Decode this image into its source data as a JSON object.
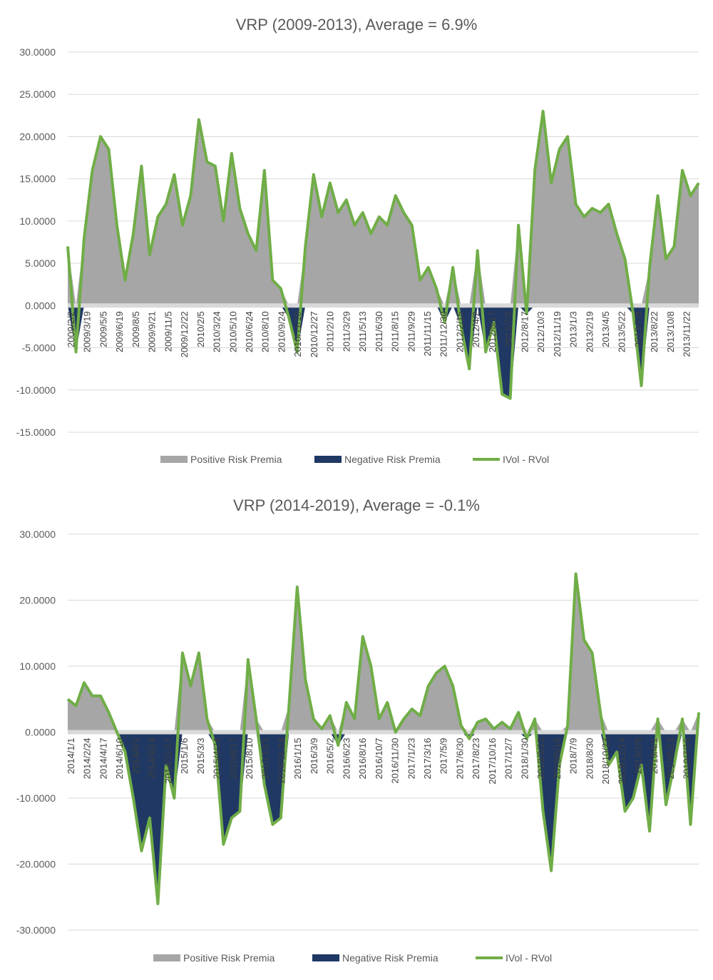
{
  "colors": {
    "positive": "#a6a6a6",
    "negative": "#1f3864",
    "line": "#70ad47",
    "grid": "#d9d9d9",
    "text": "#595959"
  },
  "chart_data": [
    {
      "type": "area",
      "title": "VRP (2009-2013), Average = 6.9%",
      "ylim": [
        -15,
        30
      ],
      "yticks": [
        "30.0000",
        "25.0000",
        "20.0000",
        "15.0000",
        "10.0000",
        "5.0000",
        "0.0000",
        "-5.0000",
        "-10.0000",
        "-15.0000"
      ],
      "ytick_values": [
        30,
        25,
        20,
        15,
        10,
        5,
        0,
        -5,
        -10,
        -15
      ],
      "x_tick_labels": [
        "2009/2/2",
        "2009/3/19",
        "2009/5/5",
        "2009/6/19",
        "2009/8/5",
        "2009/9/21",
        "2009/11/5",
        "2009/12/22",
        "2010/2/5",
        "2010/3/24",
        "2010/5/10",
        "2010/6/24",
        "2010/8/10",
        "2010/9/24",
        "2010/11/10",
        "2010/12/27",
        "2011/2/10",
        "2011/3/29",
        "2011/5/13",
        "2011/6/30",
        "2011/8/15",
        "2011/9/29",
        "2011/11/15",
        "2011/12/30",
        "2012/2/15",
        "2012/4/2",
        "2012/5/17",
        "2012/7/3",
        "2012/8/17",
        "2012/10/3",
        "2012/11/19",
        "2013/1/3",
        "2013/2/19",
        "2013/4/5",
        "2013/5/22",
        "2013/7/8",
        "2013/8/22",
        "2013/10/8",
        "2013/11/22"
      ],
      "legend": [
        "Positive Risk Premia",
        "Negative Risk Premia",
        "IVol - RVol"
      ],
      "legend_position": "bottom",
      "grid": true,
      "series": [
        {
          "name": "IVol - RVol",
          "x": [
            0,
            0.5,
            1,
            1.5,
            2,
            2.5,
            3,
            3.5,
            4,
            4.5,
            5,
            5.5,
            6,
            6.5,
            7,
            7.5,
            8,
            8.5,
            9,
            9.5,
            10,
            10.5,
            11,
            11.5,
            12,
            12.5,
            13,
            13.5,
            14,
            14.5,
            15,
            15.5,
            16,
            16.5,
            17,
            17.5,
            18,
            18.5,
            19,
            19.5,
            20,
            20.5,
            21,
            21.5,
            22,
            22.5,
            23,
            23.5,
            24,
            24.5,
            25,
            25.5,
            26,
            26.5,
            27,
            27.5,
            28,
            28.5,
            29,
            29.5,
            30,
            30.5,
            31,
            31.5,
            32,
            32.5,
            33,
            33.5,
            34,
            34.5,
            35,
            35.5,
            36,
            36.5,
            37,
            37.5,
            38,
            38.5
          ],
          "values": [
            7.0,
            -5.5,
            8.0,
            16.0,
            20.0,
            18.5,
            9.5,
            3.0,
            8.5,
            16.5,
            6.0,
            10.5,
            12.0,
            15.5,
            9.5,
            13.0,
            22.0,
            17.0,
            16.5,
            10.0,
            18.0,
            11.5,
            8.5,
            6.5,
            16.0,
            3.0,
            2.0,
            -1.5,
            -5.5,
            7.0,
            15.5,
            10.5,
            14.5,
            11.0,
            12.5,
            9.5,
            11.0,
            8.5,
            10.5,
            9.5,
            13.0,
            11.0,
            9.5,
            3.0,
            4.5,
            2.0,
            -2.0,
            4.5,
            -2.5,
            -7.5,
            6.5,
            -5.5,
            -2.0,
            -10.5,
            -11.0,
            9.5,
            -1.0,
            16.0,
            23.0,
            14.5,
            18.5,
            20.0,
            12.0,
            10.5,
            11.5,
            11.0,
            12.0,
            8.5,
            5.5,
            -1.0,
            -9.5,
            4.5,
            13.0,
            5.5,
            7.0,
            16.0,
            13.0,
            14.5
          ]
        }
      ]
    },
    {
      "type": "area",
      "title": "VRP (2014-2019), Average = -0.1%",
      "ylim": [
        -30,
        30
      ],
      "yticks": [
        "30.0000",
        "20.0000",
        "10.0000",
        "0.0000",
        "-10.0000",
        "-20.0000",
        "-30.0000"
      ],
      "ytick_values": [
        30,
        20,
        10,
        0,
        -10,
        -20,
        -30
      ],
      "x_tick_labels": [
        "2014/1/1",
        "2014/2/24",
        "2014/4/17",
        "2014/6/10",
        "2014/8/1",
        "2014/9/24",
        "2014/11/17",
        "2015/1/6",
        "2015/3/3",
        "2015/4/24",
        "2015/6/17",
        "2015/8/10",
        "2015/10/1",
        "2015/11/24",
        "2016/1/15",
        "2016/3/9",
        "2016/5/2",
        "2016/6/23",
        "2016/8/16",
        "2016/10/7",
        "2016/11/30",
        "2017/1/23",
        "2017/3/16",
        "2017/5/9",
        "2017/6/30",
        "2017/8/23",
        "2017/10/16",
        "2017/12/7",
        "2018/1/30",
        "2018/3/23",
        "2018/5/16",
        "2018/7/9",
        "2018/8/30",
        "2018/10/23",
        "2018/12/14",
        "2019/2/6",
        "2019/4/1",
        "2019/5/23",
        "2019/7/16"
      ],
      "legend": [
        "Positive Risk Premia",
        "Negative Risk Premia",
        "IVol - RVol"
      ],
      "legend_position": "bottom",
      "grid": true,
      "series": [
        {
          "name": "IVol - RVol",
          "x": [
            0,
            0.5,
            1,
            1.5,
            2,
            2.5,
            3,
            3.5,
            4,
            4.5,
            5,
            5.5,
            6,
            6.5,
            7,
            7.5,
            8,
            8.5,
            9,
            9.5,
            10,
            10.5,
            11,
            11.5,
            12,
            12.5,
            13,
            13.5,
            14,
            14.5,
            15,
            15.5,
            16,
            16.5,
            17,
            17.5,
            18,
            18.5,
            19,
            19.5,
            20,
            20.5,
            21,
            21.5,
            22,
            22.5,
            23,
            23.5,
            24,
            24.5,
            25,
            25.5,
            26,
            26.5,
            27,
            27.5,
            28,
            28.5,
            29,
            29.5,
            30,
            30.5,
            31,
            31.5,
            32,
            32.5,
            33,
            33.5,
            34,
            34.5,
            35,
            35.5,
            36,
            36.5,
            37,
            37.5,
            38,
            38.5
          ],
          "values": [
            5.0,
            4.0,
            7.5,
            5.5,
            5.5,
            3.0,
            0.0,
            -3.0,
            -10.0,
            -18.0,
            -13.0,
            -26.0,
            -5.0,
            -10.0,
            12.0,
            7.0,
            12.0,
            2.0,
            -2.0,
            -17.0,
            -13.0,
            -12.0,
            11.0,
            2.0,
            -8.0,
            -14.0,
            -13.0,
            4.0,
            22.0,
            8.0,
            2.0,
            0.5,
            2.5,
            -2.0,
            4.5,
            2.0,
            14.5,
            10.0,
            2.0,
            4.5,
            0.0,
            2.0,
            3.5,
            2.5,
            7.0,
            9.0,
            10.0,
            7.0,
            1.0,
            -1.0,
            1.5,
            2.0,
            0.5,
            1.5,
            0.5,
            3.0,
            -1.0,
            2.0,
            -12.0,
            -21.0,
            -5.0,
            1.0,
            24.0,
            14.0,
            12.0,
            3.0,
            -5.0,
            -3.0,
            -12.0,
            -10.0,
            -5.0,
            -15.0,
            2.0,
            -11.0,
            -5.0,
            2.0,
            -14.0,
            3.0
          ]
        }
      ]
    }
  ]
}
